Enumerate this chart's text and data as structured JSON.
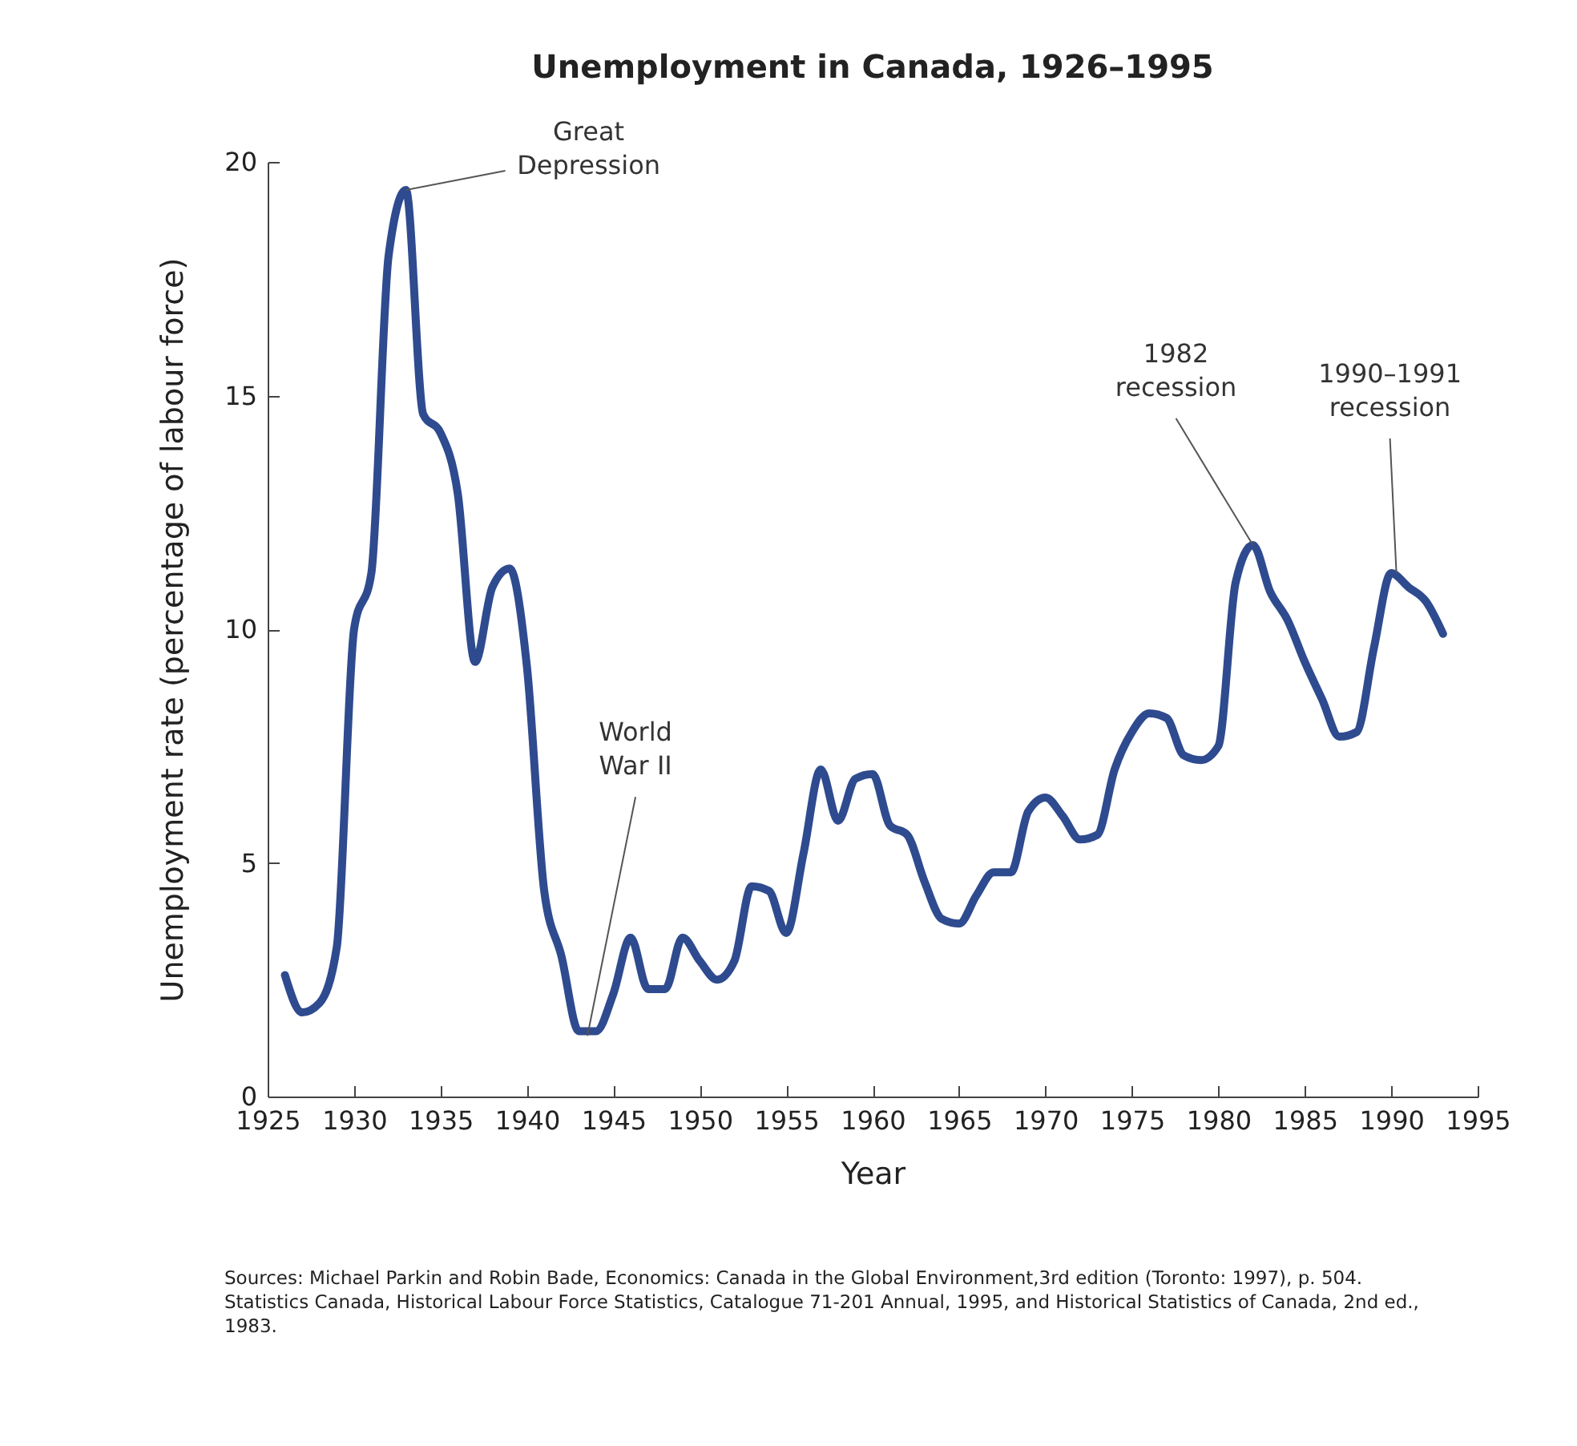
{
  "chart_data": {
    "type": "line",
    "title": "Unemployment in Canada, 1926–1995",
    "xlabel": "Year",
    "ylabel": "Unemployment rate (percentage of labour force)",
    "x": [
      1926,
      1927,
      1928,
      1929,
      1930,
      1931,
      1932,
      1933,
      1934,
      1935,
      1936,
      1937,
      1938,
      1939,
      1940,
      1941,
      1942,
      1943,
      1944,
      1945,
      1946,
      1947,
      1948,
      1949,
      1950,
      1951,
      1952,
      1953,
      1954,
      1955,
      1956,
      1957,
      1958,
      1959,
      1960,
      1961,
      1962,
      1963,
      1964,
      1965,
      1966,
      1967,
      1968,
      1969,
      1970,
      1971,
      1972,
      1973,
      1974,
      1975,
      1976,
      1977,
      1978,
      1979,
      1980,
      1981,
      1982,
      1983,
      1984,
      1985,
      1986,
      1987,
      1988,
      1989,
      1990,
      1991,
      1992,
      1993
    ],
    "series": [
      {
        "color": "#2f4b8f",
        "values": [
          2.6,
          1.8,
          2.0,
          3.2,
          10.0,
          11.2,
          18.0,
          19.4,
          14.6,
          14.2,
          12.9,
          9.3,
          10.9,
          11.3,
          9.2,
          4.4,
          3.0,
          1.4,
          1.4,
          2.2,
          3.4,
          2.3,
          2.3,
          3.4,
          2.9,
          2.5,
          2.9,
          4.5,
          4.4,
          3.5,
          5.2,
          7.0,
          5.9,
          6.8,
          6.9,
          5.8,
          5.6,
          4.6,
          3.8,
          3.7,
          4.3,
          4.8,
          4.8,
          6.1,
          6.4,
          6.0,
          5.5,
          5.6,
          7.0,
          7.8,
          8.2,
          8.1,
          7.3,
          7.2,
          7.5,
          11.0,
          11.8,
          10.8,
          10.2,
          9.3,
          8.5,
          7.7,
          7.8,
          9.6,
          11.2,
          10.9,
          10.6,
          9.9
        ]
      }
    ],
    "xlim": [
      1925,
      1995
    ],
    "xticks": [
      1925,
      1930,
      1935,
      1940,
      1945,
      1950,
      1955,
      1960,
      1965,
      1970,
      1975,
      1980,
      1985,
      1990,
      1995
    ],
    "ylim": [
      0,
      20
    ],
    "yticks": [
      0,
      5,
      10,
      15,
      20
    ],
    "grid": false,
    "marker": "none",
    "line_style": "solid",
    "annotations": [
      {
        "text": "Great Depression",
        "x": 1933,
        "y": 19.4
      },
      {
        "text": "World War II",
        "x": 1943.5,
        "y": 1.3
      },
      {
        "text": "1982 recession",
        "x": 1982,
        "y": 11.8
      },
      {
        "text": "1990–1991 recession",
        "x": 1990.3,
        "y": 11.2
      },
      "Sources: Michael Parkin and Robin Bade, Economics: Canada in the Global Environment,3rd edition (Toronto: 1997), p. 504.",
      "Statistics Canada, Historical Labour Force Statistics, Catalogue 71-201 Annual, 1995, and Historical Statistics of Canada, 2nd ed., 1983."
    ]
  }
}
